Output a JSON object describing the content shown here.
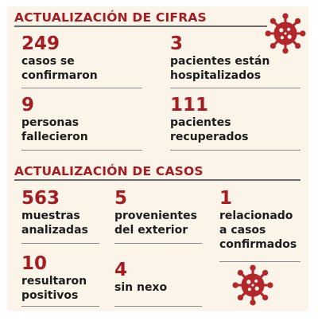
{
  "colors": {
    "accent": "#a51c22",
    "text": "#1c1c1c",
    "panel": "#fbf5e9"
  },
  "icons": [
    "virus-icon",
    "virus-icon"
  ],
  "cifras": {
    "heading": "ACTUALIZACIÓN DE CIFRAS",
    "stats": [
      {
        "number": "249",
        "label": "casos se\nconfirmaron"
      },
      {
        "number": "3",
        "label": "pacientes están\nhospitalizados"
      },
      {
        "number": "9",
        "label": "personas\nfallecieron"
      },
      {
        "number": "111",
        "label": "pacientes\nrecuperados"
      }
    ]
  },
  "casos": {
    "heading": "ACTUALIZACIÓN DE CASOS",
    "stats": [
      {
        "number": "563",
        "label": "muestras\nanalizadas"
      },
      {
        "number": "5",
        "label": "provenientes\ndel exterior"
      },
      {
        "number": "1",
        "label": "relacionado\na casos\nconfirmados"
      },
      {
        "number": "10",
        "label": "resultaron\npositivos"
      },
      {
        "number": "4",
        "label": "sin nexo"
      }
    ]
  }
}
